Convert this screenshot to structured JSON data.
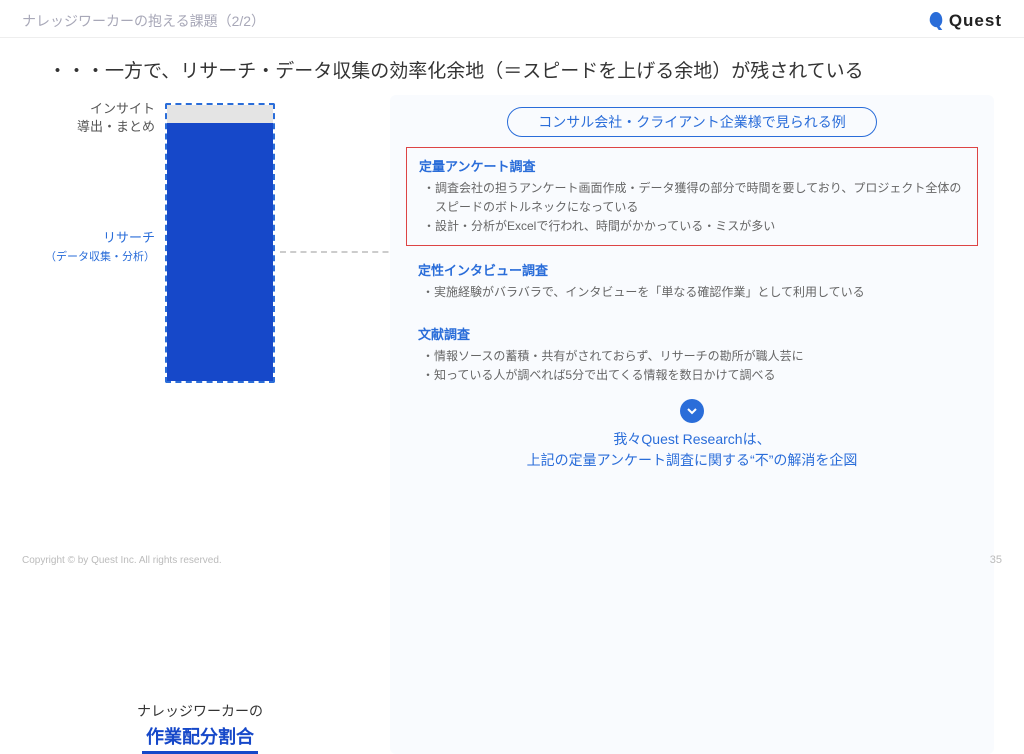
{
  "header": {
    "title": "ナレッジワーカーの抱える課題（2/2）",
    "logo_text": "Quest"
  },
  "main_message": "・・・一方で、リサーチ・データ収集の効率化余地（＝スピードを上げる余地）が残されている",
  "chart": {
    "label_top": "インサイト\n導出・まとめ",
    "label_main": "リサーチ",
    "label_main_sub": "（データ収集・分析）",
    "caption_line1": "ナレッジワーカーの",
    "caption_line2": "作業配分割合",
    "top_pct": 7,
    "main_pct": 93,
    "border_color": "#2a6dd9",
    "top_color": "#e4e4e4",
    "main_color": "#1648c9"
  },
  "right": {
    "pill": "コンサル会社・クライアント企業様で見られる例",
    "sections": [
      {
        "title": "定量アンケート調査",
        "highlight": true,
        "items": [
          "調査会社の担うアンケート画面作成・データ獲得の部分で時間を要しており、プロジェクト全体のスピードのボトルネックになっている",
          "設計・分析がExcelで行われ、時間がかかっている・ミスが多い"
        ]
      },
      {
        "title": "定性インタビュー調査",
        "highlight": false,
        "items": [
          "実施経験がバラバラで、インタビューを「単なる確認作業」として利用している"
        ]
      },
      {
        "title": "文献調査",
        "highlight": false,
        "items": [
          "情報ソースの蓄積・共有がされておらず、リサーチの勘所が職人芸に",
          "知っている人が調べれば5分で出てくる情報を数日かけて調べる"
        ]
      }
    ],
    "conclusion_l1": "我々Quest Researchは、",
    "conclusion_l2": "上記の定量アンケート調査に関する“不”の解消を企図"
  },
  "footer": "Copyright © by Quest Inc. All rights reserved.",
  "page": "35"
}
